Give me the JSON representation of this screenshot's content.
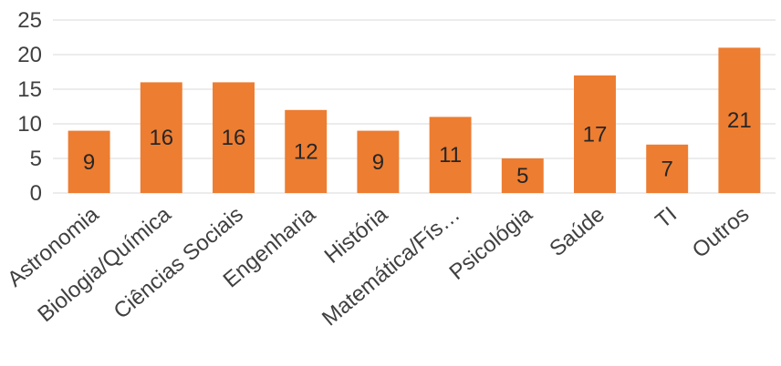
{
  "chart_data": {
    "type": "bar",
    "categories": [
      "Astronomia",
      "Biologia/Química",
      "Ciências Sociais",
      "Engenharia",
      "História",
      "Matemática/Fís…",
      "Psicológia",
      "Saúde",
      "TI",
      "Outros"
    ],
    "values": [
      9,
      16,
      16,
      12,
      9,
      11,
      5,
      17,
      7,
      21
    ],
    "ylim": [
      0,
      25
    ],
    "yticks": [
      0,
      5,
      10,
      15,
      20,
      25
    ],
    "grid": true,
    "bar_color": "#ED7D31",
    "data_labels": true,
    "title": "",
    "xlabel": "",
    "ylabel": ""
  }
}
